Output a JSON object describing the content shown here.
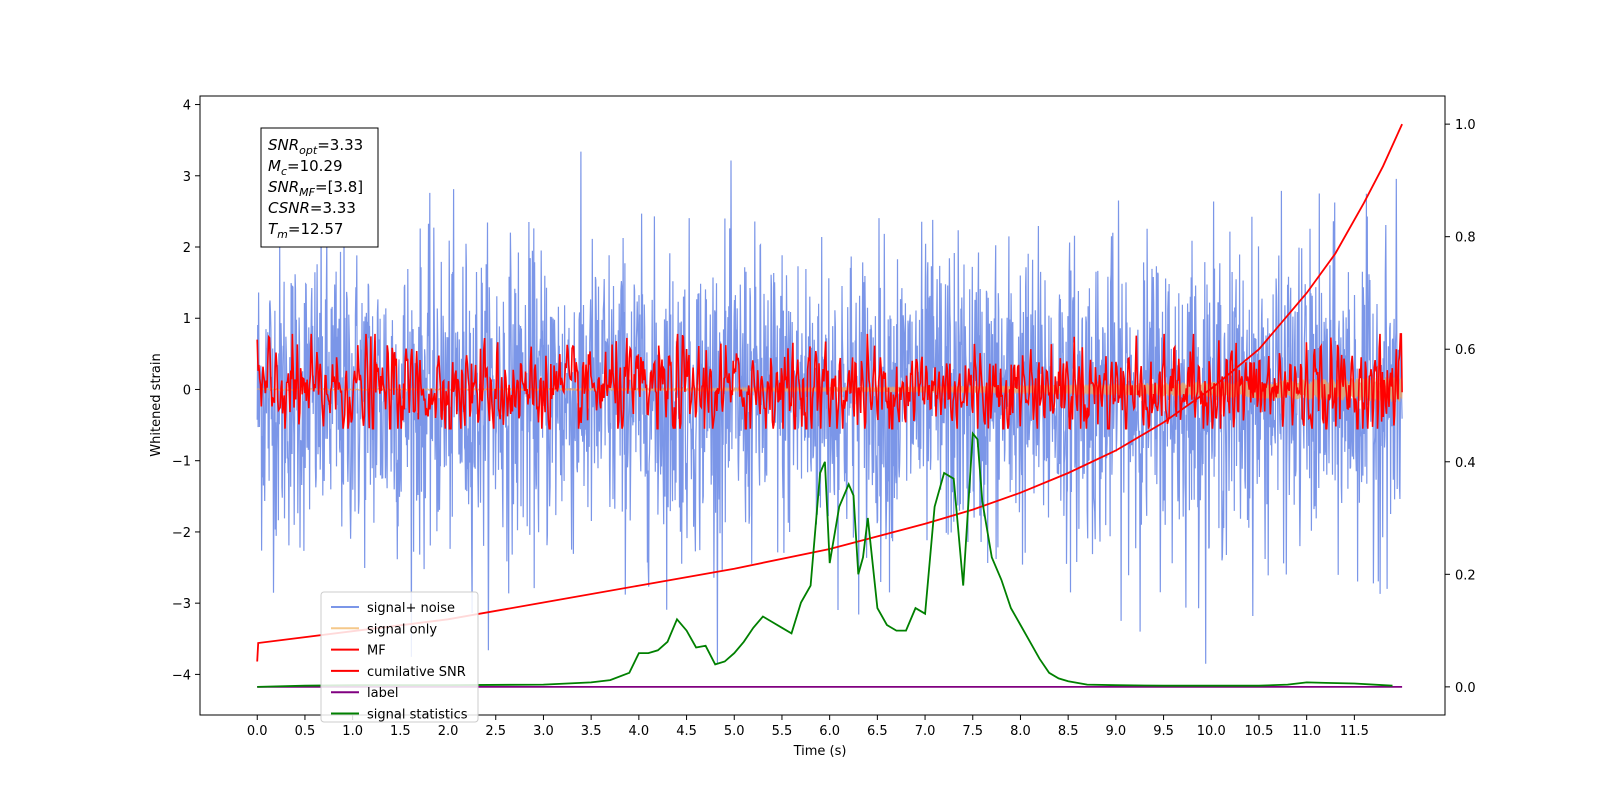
{
  "chart_data": {
    "type": "line",
    "title": "",
    "xlabel": "Time (s)",
    "ylabel": "Whitened strain",
    "y2label": "",
    "xlim": [
      -0.6,
      12.45
    ],
    "ylim": [
      -4.57,
      4.12
    ],
    "y2lim": [
      -0.05,
      1.05
    ],
    "x_ticks": [
      "0.0",
      "0.5",
      "1.0",
      "1.5",
      "2.0",
      "2.5",
      "3.0",
      "3.5",
      "4.0",
      "4.5",
      "5.0",
      "5.5",
      "6.0",
      "6.5",
      "7.0",
      "7.5",
      "8.0",
      "8.5",
      "9.0",
      "9.5",
      "10.0",
      "10.5",
      "11.0",
      "11.5"
    ],
    "y_ticks": [
      "4",
      "3",
      "2",
      "1",
      "0",
      "−1",
      "−2",
      "−3",
      "−4"
    ],
    "y2_ticks": [
      "1.0",
      "0.8",
      "0.6",
      "0.4",
      "0.2",
      "0.0"
    ],
    "grid": false,
    "legend_position": "lower-left",
    "annotations": [
      {
        "name": "SNR",
        "sub": "opt",
        "value": "=3.33"
      },
      {
        "name": "M",
        "sub": "c",
        "value": "=10.29"
      },
      {
        "name": "SNR",
        "sub": "MF",
        "value": "=[3.8]"
      },
      {
        "name": "CSNR",
        "sub": "",
        "value": "=3.33"
      },
      {
        "name": "T",
        "sub": "m",
        "value": "=12.57"
      }
    ],
    "series": [
      {
        "name": "signal+ noise",
        "color": "#7b96e8",
        "axis": "left",
        "style": "noise",
        "mean": -0.1,
        "std": 1.0,
        "x_range": [
          0.0,
          12.0
        ]
      },
      {
        "name": "signal only",
        "color": "#f5c88a",
        "axis": "left",
        "style": "chirp",
        "x_range": [
          0.0,
          12.0
        ],
        "amplitude_start": 0.01,
        "amplitude_end": 0.18
      },
      {
        "name": "MF",
        "color": "#ff0000",
        "axis": "left",
        "style": "oscillation",
        "mean": 0.0,
        "x_range": [
          0.0,
          12.0
        ],
        "start_value": 0.7,
        "end_value": 1.0
      },
      {
        "name": "cumilative SNR",
        "color": "#ff0000",
        "axis": "right",
        "x": [
          0.0,
          0.01,
          1.0,
          2.0,
          3.0,
          4.0,
          5.0,
          6.0,
          7.0,
          7.5,
          8.0,
          8.5,
          9.0,
          9.5,
          10.0,
          10.5,
          11.0,
          11.3,
          11.6,
          11.8,
          12.0
        ],
        "y": [
          0.045,
          0.078,
          0.099,
          0.12,
          0.15,
          0.18,
          0.21,
          0.245,
          0.29,
          0.315,
          0.345,
          0.38,
          0.42,
          0.47,
          0.53,
          0.6,
          0.7,
          0.77,
          0.86,
          0.925,
          1.0
        ]
      },
      {
        "name": "label",
        "color": "#800080",
        "axis": "right",
        "x": [
          0.0,
          12.0
        ],
        "y": [
          0.0,
          0.0
        ]
      },
      {
        "name": "signal statistics",
        "color": "#008000",
        "axis": "right",
        "x": [
          0.0,
          0.5,
          1.0,
          2.0,
          3.0,
          3.5,
          3.7,
          3.9,
          4.0,
          4.1,
          4.2,
          4.3,
          4.4,
          4.5,
          4.6,
          4.7,
          4.8,
          4.9,
          5.0,
          5.1,
          5.2,
          5.3,
          5.4,
          5.5,
          5.6,
          5.7,
          5.8,
          5.9,
          5.95,
          6.0,
          6.1,
          6.2,
          6.25,
          6.3,
          6.35,
          6.4,
          6.5,
          6.6,
          6.7,
          6.8,
          6.9,
          7.0,
          7.1,
          7.2,
          7.3,
          7.4,
          7.5,
          7.55,
          7.6,
          7.7,
          7.8,
          7.9,
          8.0,
          8.1,
          8.2,
          8.3,
          8.4,
          8.5,
          8.7,
          9.0,
          9.5,
          10.0,
          10.5,
          10.8,
          11.0,
          11.2,
          11.5,
          11.9
        ],
        "y": [
          0.0,
          0.002,
          0.003,
          0.003,
          0.004,
          0.008,
          0.012,
          0.025,
          0.06,
          0.06,
          0.065,
          0.08,
          0.12,
          0.1,
          0.07,
          0.073,
          0.04,
          0.045,
          0.06,
          0.08,
          0.105,
          0.125,
          0.115,
          0.105,
          0.095,
          0.15,
          0.18,
          0.38,
          0.4,
          0.22,
          0.32,
          0.36,
          0.34,
          0.2,
          0.23,
          0.3,
          0.14,
          0.11,
          0.1,
          0.1,
          0.14,
          0.13,
          0.32,
          0.38,
          0.37,
          0.18,
          0.45,
          0.44,
          0.33,
          0.23,
          0.19,
          0.14,
          0.11,
          0.08,
          0.05,
          0.025,
          0.015,
          0.01,
          0.004,
          0.003,
          0.002,
          0.002,
          0.002,
          0.004,
          0.008,
          0.007,
          0.006,
          0.002
        ]
      }
    ]
  }
}
